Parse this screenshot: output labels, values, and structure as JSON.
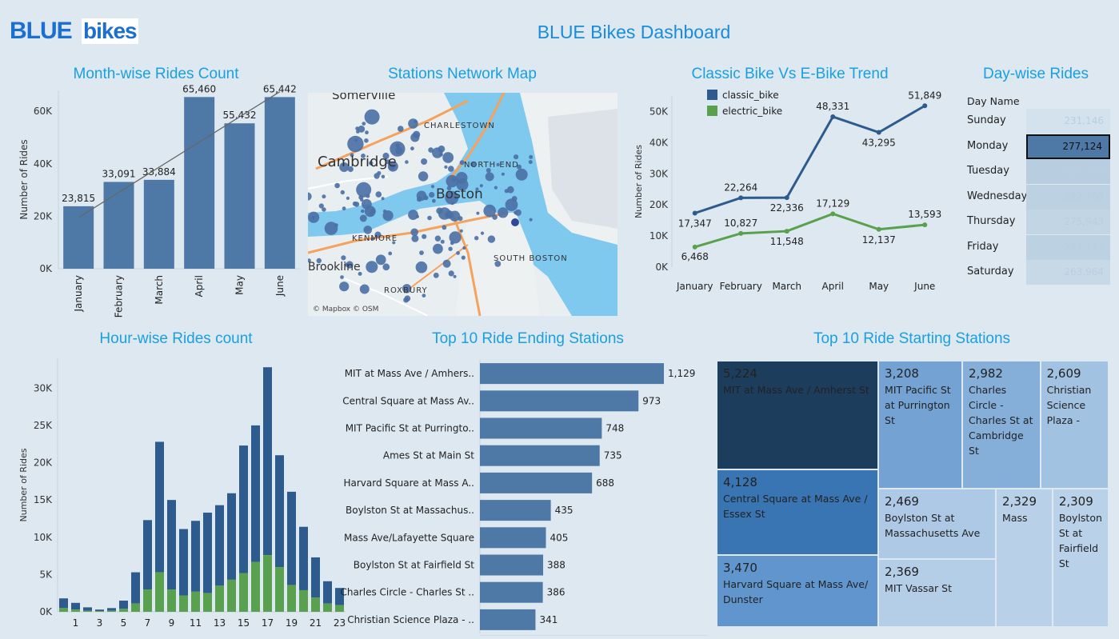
{
  "logo": {
    "part1": "BLUE",
    "part2": "bikes"
  },
  "dashboard_title": "BLUE Bikes Dashboard",
  "panels": {
    "month": {
      "title": "Month-wise Rides Count"
    },
    "map": {
      "title": "Stations Network Map",
      "attribution": "© Mapbox © OSM",
      "labels": [
        "Somerville",
        "CHARLESTOWN",
        "NORTH END",
        "Boston",
        "KENMORE",
        "SOUTH BOSTON",
        "ROXBURY",
        "Brookline",
        "Cambridge"
      ]
    },
    "trend": {
      "title": "Classic Bike Vs E-Bike Trend"
    },
    "day": {
      "title": "Day-wise Rides",
      "header": "Day Name"
    },
    "hour": {
      "title": "Hour-wise Rides count"
    },
    "ending": {
      "title": "Top 10 Ride Ending Stations"
    },
    "starting": {
      "title": "Top 10 Ride Starting Stations"
    }
  },
  "chart_data": [
    {
      "id": "month",
      "type": "bar",
      "title": "Month-wise Rides Count",
      "ylabel": "Number of Rides",
      "categories": [
        "January",
        "February",
        "March",
        "April",
        "May",
        "June"
      ],
      "values": [
        23815,
        33091,
        33884,
        65460,
        55432,
        65442
      ],
      "value_labels": [
        "23,815",
        "33,091",
        "33,884",
        "65,460",
        "55,432",
        "65,442"
      ],
      "yticks": [
        0,
        20000,
        40000,
        60000
      ],
      "ytick_labels": [
        "0K",
        "20K",
        "40K",
        "60K"
      ],
      "ylim": [
        0,
        68000
      ],
      "trend_line": [
        19500,
        67500
      ],
      "color": "#4e79a7"
    },
    {
      "id": "trend",
      "type": "line",
      "title": "Classic Bike Vs E-Bike Trend",
      "ylabel": "Number of Rides",
      "categories": [
        "January",
        "February",
        "March",
        "April",
        "May",
        "June"
      ],
      "series": [
        {
          "name": "classic_bike",
          "color": "#2d5b8e",
          "values": [
            17347,
            22264,
            22336,
            48331,
            43295,
            51849
          ],
          "labels": [
            "17,347",
            "22,264",
            "22,336",
            "48,331",
            "43,295",
            "51,849"
          ]
        },
        {
          "name": "electric_bike",
          "color": "#59a14f",
          "values": [
            6468,
            10827,
            11548,
            17129,
            12137,
            13593
          ],
          "labels": [
            "6,468",
            "10,827",
            "11,548",
            "17,129",
            "12,137",
            "13,593"
          ]
        }
      ],
      "yticks": [
        0,
        10000,
        20000,
        30000,
        40000,
        50000
      ],
      "ytick_labels": [
        "0K",
        "10K",
        "20K",
        "30K",
        "40K",
        "50K"
      ],
      "ylim": [
        0,
        55000
      ],
      "legend": "top-left"
    },
    {
      "id": "day",
      "type": "table",
      "title": "Day-wise Rides",
      "rows": [
        {
          "day": "Sunday",
          "value": 231146,
          "label": "231,146"
        },
        {
          "day": "Monday",
          "value": 277124,
          "label": "277,124"
        },
        {
          "day": "Tuesday",
          "value": 303404,
          "label": "303,404"
        },
        {
          "day": "Wednesday",
          "value": 292700,
          "label": "292,700"
        },
        {
          "day": "Thursday",
          "value": 275943,
          "label": "275,943"
        },
        {
          "day": "Friday",
          "value": 291773,
          "label": "291,773"
        },
        {
          "day": "Saturday",
          "value": 263964,
          "label": "263,964"
        }
      ],
      "selected": "Monday"
    },
    {
      "id": "hour",
      "type": "bar",
      "title": "Hour-wise Rides count",
      "ylabel": "Number of Rides",
      "stacked": true,
      "x": [
        0,
        1,
        2,
        3,
        4,
        5,
        6,
        7,
        8,
        9,
        10,
        11,
        12,
        13,
        14,
        15,
        16,
        17,
        18,
        19,
        20,
        21,
        22,
        23
      ],
      "xtick_labels": [
        "1",
        "3",
        "5",
        "7",
        "9",
        "11",
        "13",
        "15",
        "17",
        "19",
        "21",
        "23"
      ],
      "series": [
        {
          "name": "classic_bike",
          "color": "#2d5b8e",
          "values": [
            1300,
            900,
            450,
            200,
            350,
            1100,
            4200,
            9300,
            17500,
            12000,
            8900,
            9500,
            10800,
            10800,
            11600,
            17100,
            18300,
            25200,
            15000,
            12500,
            8500,
            5400,
            3000,
            2300
          ]
        },
        {
          "name": "electric_bike",
          "color": "#59a14f",
          "values": [
            500,
            300,
            150,
            100,
            150,
            400,
            1100,
            3000,
            5300,
            3000,
            2200,
            2700,
            2500,
            3500,
            4300,
            5200,
            6700,
            7600,
            6000,
            3600,
            2900,
            1900,
            1100,
            900
          ]
        }
      ],
      "yticks": [
        0,
        5000,
        10000,
        15000,
        20000,
        25000,
        30000
      ],
      "ytick_labels": [
        "0K",
        "5K",
        "10K",
        "15K",
        "20K",
        "25K",
        "30K"
      ],
      "ylim": [
        0,
        34000
      ]
    },
    {
      "id": "ending",
      "type": "bar",
      "orientation": "horizontal",
      "title": "Top 10 Ride Ending Stations",
      "categories": [
        "MIT at Mass Ave / Amhers..",
        "Central Square at Mass Av..",
        "MIT Pacific St at Purringto..",
        "Ames St at Main St",
        "Harvard Square at Mass A..",
        "Boylston St at Massachus..",
        "Mass Ave/Lafayette Square",
        "Boylston St at Fairfield St",
        "Charles Circle - Charles St ..",
        "Christian Science Plaza - .."
      ],
      "values": [
        1129,
        973,
        748,
        735,
        688,
        435,
        405,
        388,
        386,
        341
      ],
      "value_labels": [
        "1,129",
        "973",
        "748",
        "735",
        "688",
        "435",
        "405",
        "388",
        "386",
        "341"
      ],
      "xlim": [
        0,
        1129
      ],
      "color": "#4e79a7"
    },
    {
      "id": "starting",
      "type": "treemap",
      "title": "Top 10 Ride Starting Stations",
      "items": [
        {
          "value": 5224,
          "label": "5,224",
          "name": "MIT at Mass Ave / Amherst St"
        },
        {
          "value": 4128,
          "label": "4,128",
          "name": "Central Square at Mass Ave / Essex St"
        },
        {
          "value": 3470,
          "label": "3,470",
          "name": "Harvard Square at Mass Ave/ Dunster"
        },
        {
          "value": 3208,
          "label": "3,208",
          "name": "MIT Pacific St at Purrington St"
        },
        {
          "value": 2982,
          "label": "2,982",
          "name": "Charles Circle - Charles St at Cambridge St"
        },
        {
          "value": 2609,
          "label": "2,609",
          "name": "Christian Science Plaza -"
        },
        {
          "value": 2469,
          "label": "2,469",
          "name": "Boylston St at Massachusetts Ave"
        },
        {
          "value": 2369,
          "label": "2,369",
          "name": "MIT Vassar St"
        },
        {
          "value": 2329,
          "label": "2,329",
          "name": "Mass"
        },
        {
          "value": 2309,
          "label": "2,309",
          "name": "Boylston St at Fairfield St"
        }
      ]
    }
  ]
}
